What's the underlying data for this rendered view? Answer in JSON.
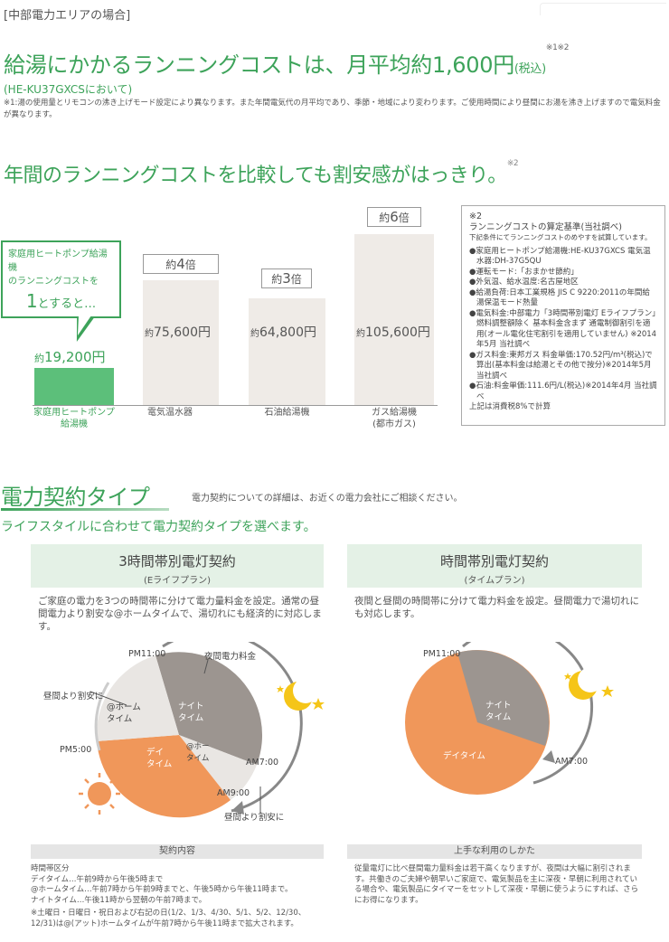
{
  "area_tag": "[中部電力エリアの場合]",
  "headline": {
    "text": "給湯にかかるランニングコストは、月平均約1,600円",
    "tax": "(税込)",
    "note_ref": "※1※2"
  },
  "model": "(HE-KU37GXCSにおいて)",
  "note1": "※1:湯の使用量とリモコンの沸き上げモード設定により異なります。また年間電気代の月平均であり、季節・地域により変わります。ご使用時間により昼間にお湯を沸き上げますので電気料金が異なります。",
  "compare": {
    "heading": "年間のランニングコストを比較しても割安感がはっきり。",
    "note_ref": "※2",
    "callout": {
      "line1": "家庭用ヒートポンプ給湯機",
      "line2": "のランニングコストを",
      "big": "1",
      "rest": "とすると…"
    },
    "bars": [
      {
        "value_prefix": "約",
        "value": "19,200円",
        "times_prefix": "",
        "times": "",
        "times_suffix": "",
        "label1": "家庭用ヒートポンプ",
        "label2": "給湯機"
      },
      {
        "value_prefix": "約",
        "value": "75,600円",
        "times_prefix": "約",
        "times": "4",
        "times_suffix": "倍",
        "label1": "電気温水器",
        "label2": ""
      },
      {
        "value_prefix": "約",
        "value": "64,800円",
        "times_prefix": "約",
        "times": "3",
        "times_suffix": "倍",
        "label1": "石油給湯機",
        "label2": ""
      },
      {
        "value_prefix": "約",
        "value": "105,600円",
        "times_prefix": "約",
        "times": "6",
        "times_suffix": "倍",
        "label1": "ガス給湯機",
        "label2": "(都市ガス)"
      }
    ],
    "chart_data": {
      "type": "bar",
      "categories": [
        "家庭用ヒートポンプ給湯機",
        "電気温水器",
        "石油給湯機",
        "ガス給湯機(都市ガス)"
      ],
      "values": [
        19200,
        75600,
        64800,
        105600
      ]
    }
  },
  "notebox": {
    "ref": "※2",
    "title": "ランニングコストの算定基準(当社調べ)",
    "sub": "下記条件にてランニングコストのめやすを試算しています。",
    "items": [
      "●家庭用ヒートポンプ給湯機:HE-KU37GXCS 電気温水器:DH-37G5QU",
      "●運転モード:「おまかせ節約」",
      "●外気温、給水温度:名古屋地区",
      "●給湯負荷:日本工業規格 JIS C 9220:2011の年間給湯保温モード熱量",
      "●電気料金:中部電力「3時間帯別電灯 Eライフプラン」燃料調整額除く 基本料金含まず 通電制御割引を適用(オール電化住宅割引を適用していません) ※2014年5月 当社調べ",
      "●ガス料金:東邦ガス 料金単価:170.52円/m³(税込)で算出(基本料金は給湯とその他で按分)※2014年5月 当社調べ",
      "●石油:料金単価:111.6円/L(税込)※2014年4月 当社調べ"
    ],
    "footer": "上記は消費税8%で計算"
  },
  "plans": {
    "title": "電力契約タイプ",
    "note": "電力契約についての詳細は、お近くの電力会社にご相談ください。",
    "subtitle": "ライフスタイルに合わせて電力契約タイプを選べます。",
    "left": {
      "title": "3時間帯別電灯契約",
      "subtitle": "(Eライフプラン)",
      "desc": "ご家庭の電力を3つの時間帯に分けて電力量料金を設定。通常の昼間電力より割安な@ホームタイムで、湯切れにも経済的に対応します。",
      "pm11": "PM11:00",
      "pm5": "PM5:00",
      "am7": "AM7:00",
      "am9": "AM9:00",
      "night_label": "夜間電力料金",
      "cheaper1": "昼間より割安に",
      "cheaper2": "昼間より割安に",
      "night": "ナイト\nタイム",
      "day": "デイ\nタイム",
      "home1": "@ホーム\nタイム",
      "home2": "@ホー\nタイム",
      "bar": "契約内容",
      "foot_title": "時間帯区分",
      "foot_lines": [
        "デイタイム…午前9時から午後5時まで",
        "@ホームタイム…午前7時から午前9時までと、午後5時から午後11時まで。",
        "ナイトタイム…午後11時から翌朝の午前7時まで。"
      ],
      "foot_note": "※土曜日・日曜日・祝日および右記の日(1/2、1/3、4/30、5/1、5/2、12/30、12/31)は@(アット)ホームタイムが午前7時から午後11時まで拡大されます。"
    },
    "right": {
      "title": "時間帯別電灯契約",
      "subtitle": "(タイムプラン)",
      "desc": "夜間と昼間の時間帯に分けて電力料金を設定。昼間電力で湯切れにも対応します。",
      "pm11": "PM11:00",
      "am7": "AM7:00",
      "night": "ナイト\nタイム",
      "day": "デイタイム",
      "bar": "上手な利用のしかた",
      "foot": "従量電灯に比べ昼間電力量料金は若干高くなりますが、夜間は大幅に割引されます。共働きのご夫婦や朝早いご家庭で、電気製品を主に深夜・早朝に利用されている場合や、電気製品にタイマーをセットして深夜・早朝に使うようにすれば、さらにお得になります。"
    }
  },
  "colors": {
    "green": "#3da35a",
    "bar_green": "#5cbf7a",
    "orange": "#f0975a",
    "grey": "#9c9590",
    "light_grey": "#e9e6e3"
  }
}
